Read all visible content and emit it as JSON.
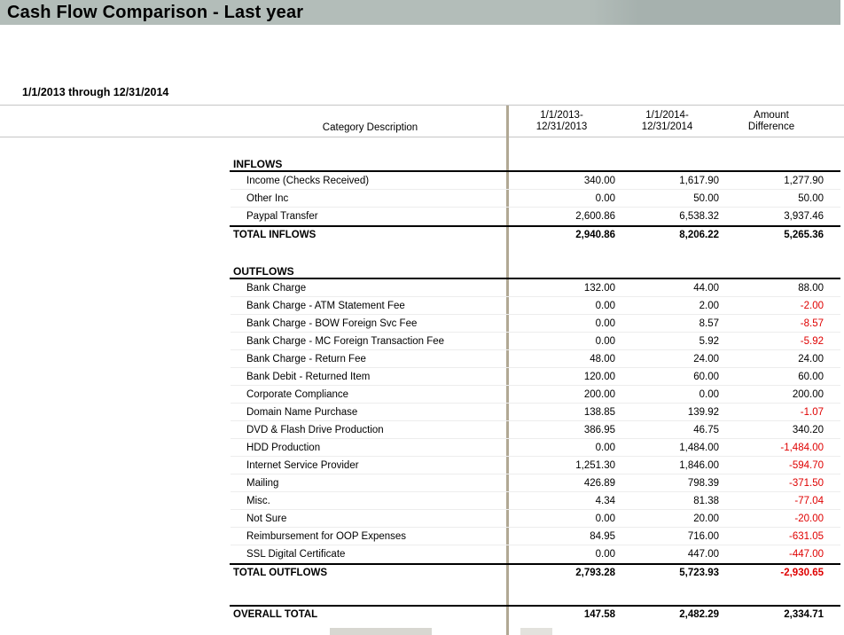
{
  "title": "Cash Flow Comparison - Last year",
  "date_range": "1/1/2013 through 12/31/2014",
  "columns": {
    "category": "Category Description",
    "period1": [
      "1/1/2013-",
      "12/31/2013"
    ],
    "period2": [
      "1/1/2014-",
      "12/31/2014"
    ],
    "difference": [
      "Amount",
      "Difference"
    ]
  },
  "inflows": {
    "heading": "INFLOWS",
    "rows": [
      {
        "label": "Income (Checks Received)",
        "y2013": "340.00",
        "y2014": "1,617.90",
        "diff": "1,277.90"
      },
      {
        "label": "Other Inc",
        "y2013": "0.00",
        "y2014": "50.00",
        "diff": "50.00"
      },
      {
        "label": "Paypal Transfer",
        "y2013": "2,600.86",
        "y2014": "6,538.32",
        "diff": "3,937.46"
      }
    ],
    "total": {
      "label": "TOTAL INFLOWS",
      "y2013": "2,940.86",
      "y2014": "8,206.22",
      "diff": "5,265.36"
    }
  },
  "outflows": {
    "heading": "OUTFLOWS",
    "rows": [
      {
        "label": "Bank Charge",
        "y2013": "132.00",
        "y2014": "44.00",
        "diff": "88.00"
      },
      {
        "label": "Bank Charge - ATM Statement Fee",
        "y2013": "0.00",
        "y2014": "2.00",
        "diff": "-2.00"
      },
      {
        "label": "Bank Charge - BOW Foreign Svc Fee",
        "y2013": "0.00",
        "y2014": "8.57",
        "diff": "-8.57"
      },
      {
        "label": "Bank Charge - MC Foreign Transaction Fee",
        "y2013": "0.00",
        "y2014": "5.92",
        "diff": "-5.92"
      },
      {
        "label": "Bank Charge - Return Fee",
        "y2013": "48.00",
        "y2014": "24.00",
        "diff": "24.00"
      },
      {
        "label": "Bank Debit - Returned Item",
        "y2013": "120.00",
        "y2014": "60.00",
        "diff": "60.00"
      },
      {
        "label": "Corporate Compliance",
        "y2013": "200.00",
        "y2014": "0.00",
        "diff": "200.00"
      },
      {
        "label": "Domain Name Purchase",
        "y2013": "138.85",
        "y2014": "139.92",
        "diff": "-1.07"
      },
      {
        "label": "DVD & Flash Drive Production",
        "y2013": "386.95",
        "y2014": "46.75",
        "diff": "340.20"
      },
      {
        "label": "HDD Production",
        "y2013": "0.00",
        "y2014": "1,484.00",
        "diff": "-1,484.00"
      },
      {
        "label": "Internet Service Provider",
        "y2013": "1,251.30",
        "y2014": "1,846.00",
        "diff": "-594.70"
      },
      {
        "label": "Mailing",
        "y2013": "426.89",
        "y2014": "798.39",
        "diff": "-371.50"
      },
      {
        "label": "Misc.",
        "y2013": "4.34",
        "y2014": "81.38",
        "diff": "-77.04"
      },
      {
        "label": "Not Sure",
        "y2013": "0.00",
        "y2014": "20.00",
        "diff": "-20.00"
      },
      {
        "label": "Reimbursement for OOP Expenses",
        "y2013": "84.95",
        "y2014": "716.00",
        "diff": "-631.05"
      },
      {
        "label": "SSL Digital Certificate",
        "y2013": "0.00",
        "y2014": "447.00",
        "diff": "-447.00"
      }
    ],
    "total": {
      "label": "TOTAL OUTFLOWS",
      "y2013": "2,793.28",
      "y2014": "5,723.93",
      "diff": "-2,930.65"
    }
  },
  "overall": {
    "label": "OVERALL TOTAL",
    "y2013": "147.58",
    "y2014": "2,482.29",
    "diff": "2,334.71"
  },
  "colors": {
    "titlebar": "#b3bdb9",
    "divider": "#b1a894",
    "negative": "#df0000"
  }
}
